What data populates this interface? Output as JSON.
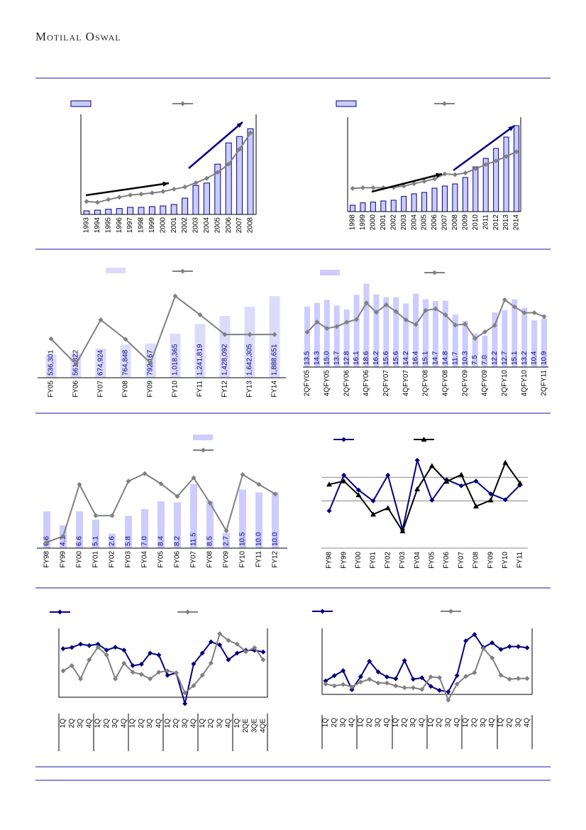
{
  "header": {
    "brand": "Motilal Oswal"
  },
  "colors": {
    "rule": "#1a1aa0",
    "navy": "#000080",
    "grey": "#808080",
    "bar": "#ccccff",
    "bar_light": "#dcdcfa",
    "black": "#000000"
  },
  "chart_data": [
    {
      "type": "bar+line",
      "title": "",
      "categories": [
        "1993",
        "1994",
        "1995",
        "1996",
        "1997",
        "1998",
        "1999",
        "2000",
        "2001",
        "2002",
        "2003",
        "2004",
        "2005",
        "2006",
        "2007",
        "2008"
      ],
      "bars": [
        15,
        18,
        22,
        25,
        30,
        30,
        33,
        36,
        42,
        69,
        123,
        133,
        213,
        303,
        330,
        363
      ],
      "line": [
        55,
        51,
        63,
        73,
        82,
        86,
        91,
        97,
        107,
        116,
        134,
        153,
        178,
        213,
        276,
        345
      ],
      "ylim": [
        0,
        412
      ],
      "legend": [
        "bar",
        "line"
      ]
    },
    {
      "type": "bar+line",
      "title": "",
      "categories": [
        "1998",
        "1999",
        "2000",
        "2001",
        "2002",
        "2003",
        "2004",
        "2005",
        "2006",
        "2007",
        "2008",
        "2009",
        "2010",
        "2011",
        "2012",
        "2013",
        "2014"
      ],
      "bars": [
        27,
        37,
        40,
        45,
        48,
        64,
        75,
        81,
        99,
        108,
        117,
        144,
        189,
        225,
        267,
        315,
        363
      ],
      "line": [
        98,
        101,
        101,
        101,
        102,
        108,
        118,
        128,
        138,
        159,
        156,
        163,
        181,
        199,
        214,
        233,
        253
      ],
      "ylim": [
        0,
        387
      ],
      "legend": [
        "bar",
        "line"
      ]
    },
    {
      "type": "bar+line",
      "title": "",
      "categories": [
        "FY05",
        "FY06",
        "FY07",
        "FY08",
        "FY09",
        "FY10",
        "FY11",
        "FY12",
        "FY13",
        "FY14"
      ],
      "bars": [
        536301,
        561822,
        674924,
        764848,
        792167,
        1018365,
        1241819,
        1428092,
        1642305,
        1888651
      ],
      "bar_labels": [
        "536,301",
        "561,822",
        "674,924",
        "764,848",
        "792,167",
        "1,018,365",
        "1,241,819",
        "1,428,092",
        "1,642,305",
        "1,888,651"
      ],
      "line": [
        164,
        57,
        244,
        162,
        62,
        344,
        265,
        182,
        182,
        182
      ],
      "ylim": [
        0,
        2086200
      ],
      "line_ylim": [
        0,
        380
      ]
    },
    {
      "type": "bar+line",
      "title": "",
      "tick_labels": [
        "2QFY05",
        "4QFY05",
        "2QFY06",
        "4QFY06",
        "2QFY07",
        "4QFY07",
        "2QFY08",
        "4QFY08",
        "2QFY09",
        "4QFY09",
        "2QFY10",
        "4QFY10",
        "2QFY11"
      ],
      "bars": [
        13.5,
        14.3,
        15.0,
        13.7,
        12.8,
        16.1,
        18.6,
        16.2,
        15.6,
        15.6,
        14.2,
        16.4,
        15.1,
        14.7,
        14.8,
        11.7,
        10.3,
        7.5,
        7.0,
        12.2,
        12.7,
        15.1,
        13.2,
        10.4,
        10.9
      ],
      "bar_labels": [
        "13.5",
        "14.3",
        "15.0",
        "13.7",
        "12.8",
        "16.1",
        "18.6",
        "16.2",
        "15.6",
        "15.6",
        "14.2",
        "16.4",
        "15.1",
        "14.7",
        "14.8",
        "11.7",
        "10.3",
        "7.5",
        "7.0",
        "12.2",
        "12.7",
        "15.1",
        "13.2",
        "10.4",
        "10.9"
      ],
      "line": [
        148,
        191,
        164,
        172,
        190,
        202,
        272,
        232,
        264,
        235,
        200,
        180,
        240,
        247,
        221,
        178,
        182,
        121,
        149,
        177,
        285,
        255,
        230,
        230,
        214
      ],
      "ylim": [
        0,
        19.63
      ],
      "line_ylim": [
        0,
        373
      ]
    },
    {
      "type": "bar+line",
      "title": "",
      "categories": [
        "FY98",
        "FY99",
        "FY00",
        "FY01",
        "FY02",
        "FY03",
        "FY04",
        "FY05",
        "FY06",
        "FY07",
        "FY08",
        "FY09",
        "FY10",
        "FY11",
        "FY12"
      ],
      "bars": [
        6.6,
        4.1,
        6.6,
        5.1,
        2.6,
        5.8,
        7.0,
        8.4,
        8.2,
        11.5,
        8.5,
        2.7,
        10.5,
        10.0,
        10.0
      ],
      "bar_labels": [
        "6.6",
        "4.1",
        "6.6",
        "5.1",
        "2.6",
        "5.8",
        "7.0",
        "8.4",
        "8.2",
        "11.5",
        "8.5",
        "2.7",
        "10.5",
        "10.0",
        "10.0"
      ],
      "line": [
        25,
        50,
        268,
        137,
        137,
        282,
        314,
        271,
        218,
        296,
        190,
        73,
        310,
        268,
        228
      ],
      "ylim": [
        0,
        13.5
      ],
      "line_ylim": [
        0,
        317
      ]
    },
    {
      "type": "line",
      "categories": [
        "FY98",
        "FY99",
        "FY00",
        "FY01",
        "FY02",
        "FY03",
        "FY04",
        "FY05",
        "FY06",
        "FY07",
        "FY08",
        "FY09",
        "FY10",
        "FY11"
      ],
      "series": [
        {
          "name": "",
          "marker": "diamond",
          "values": [
            158,
            309,
            246,
            200,
            309,
            78,
            372,
            203,
            290,
            264,
            284,
            230,
            205,
            267
          ]
        },
        {
          "name": "",
          "marker": "triangle",
          "values": [
            270,
            284,
            225,
            143,
            170,
            72,
            250,
            348,
            282,
            311,
            177,
            203,
            362,
            275
          ]
        }
      ],
      "gridlines": [
        0,
        200,
        300
      ],
      "ylim": [
        0,
        400
      ]
    },
    {
      "type": "line",
      "categories": [
        "1Q",
        "2Q",
        "3Q",
        "4Q",
        "1Q",
        "2Q",
        "3Q",
        "4Q",
        "1Q",
        "2Q",
        "3Q",
        "4Q",
        "1Q",
        "2Q",
        "3Q",
        "4Q",
        "1Q",
        "2Q",
        "3Q",
        "4Q",
        "1Q",
        "2QE",
        "3QE",
        "4QE"
      ],
      "series": [
        {
          "name": "",
          "marker": "diamond",
          "values": [
            206,
            211,
            225,
            219,
            225,
            200,
            212,
            200,
            134,
            140,
            187,
            179,
            93,
            103,
            -27,
            141,
            187,
            235,
            222,
            159,
            187,
            199,
            199,
            192
          ]
        },
        {
          "name": "",
          "marker": "diamond",
          "values": [
            112,
            134,
            78,
            159,
            212,
            179,
            78,
            144,
            106,
            97,
            78,
            106,
            112,
            103,
            19,
            49,
            93,
            145,
            269,
            241,
            225,
            193,
            210,
            159
          ]
        }
      ],
      "ylim": [
        -30,
        292
      ]
    },
    {
      "type": "line",
      "categories": [
        "1Q",
        "2Q",
        "3Q",
        "4Q",
        "1Q",
        "2Q",
        "3Q",
        "4Q",
        "1Q",
        "2Q",
        "3Q",
        "4Q",
        "1Q",
        "2Q",
        "3Q",
        "4Q",
        "1Q",
        "2Q",
        "3Q",
        "4Q",
        "1Q",
        "2Q",
        "3Q",
        "4Q"
      ],
      "series": [
        {
          "name": "",
          "marker": "diamond",
          "values": [
            57,
            79,
            100,
            20,
            75,
            140,
            95,
            74,
            66,
            143,
            64,
            70,
            34,
            17,
            11,
            80,
            226,
            253,
            198,
            218,
            190,
            202,
            202,
            197
          ]
        },
        {
          "name": "",
          "marker": "diamond",
          "values": [
            44,
            36,
            42,
            32,
            52,
            64,
            48,
            48,
            36,
            28,
            28,
            21,
            74,
            71,
            -24,
            44,
            76,
            92,
            194,
            154,
            81,
            64,
            67,
            67
          ]
        }
      ],
      "ylim": [
        -30,
        279
      ]
    }
  ]
}
